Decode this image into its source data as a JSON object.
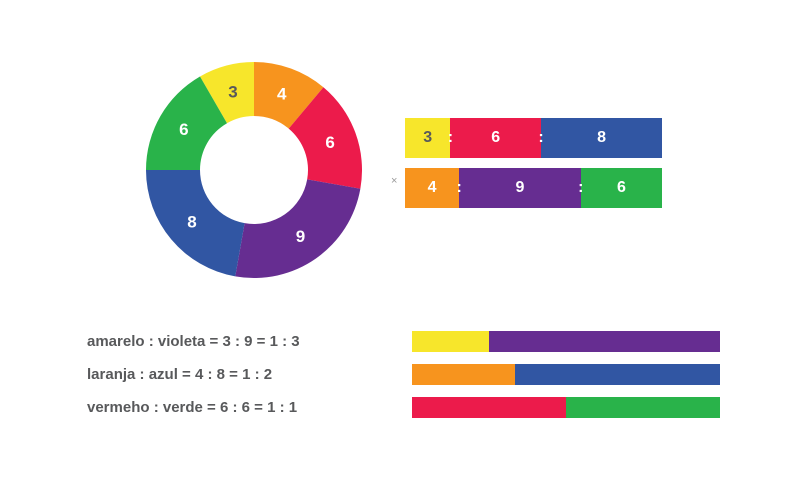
{
  "page": {
    "background": "#ffffff"
  },
  "palette": {
    "yellow": "#F7E62B",
    "orange": "#F7941E",
    "red": "#EC1B4B",
    "purple": "#662D91",
    "blue": "#3156A3",
    "green": "#29B34A",
    "text_dark": "#58595B",
    "label_light": "#FFFFFF"
  },
  "chart_data": [
    {
      "id": "donut",
      "type": "pie",
      "subtype": "donut",
      "direction": "clockwise",
      "start_angle_deg": -30,
      "total": 36,
      "segments": [
        {
          "label": "3",
          "value": 3,
          "color": "yellow",
          "label_style": "dark"
        },
        {
          "label": "4",
          "value": 4,
          "color": "orange",
          "label_style": "light"
        },
        {
          "label": "6",
          "value": 6,
          "color": "red",
          "label_style": "light"
        },
        {
          "label": "9",
          "value": 9,
          "color": "purple",
          "label_style": "light"
        },
        {
          "label": "8",
          "value": 8,
          "color": "blue",
          "label_style": "light"
        },
        {
          "label": "6",
          "value": 6,
          "color": "green",
          "label_style": "light"
        }
      ]
    },
    {
      "id": "ratio-strip-top",
      "type": "bar",
      "separator": ":",
      "segments": [
        {
          "label": "3",
          "value": 3,
          "color": "yellow",
          "label_style": "dark"
        },
        {
          "label": "6",
          "value": 6,
          "color": "red",
          "label_style": "light"
        },
        {
          "label": "8",
          "value": 8,
          "color": "blue",
          "label_style": "light"
        }
      ]
    },
    {
      "id": "ratio-strip-bottom",
      "type": "bar",
      "separator": ":",
      "segments": [
        {
          "label": "4",
          "value": 4,
          "color": "orange",
          "label_style": "light"
        },
        {
          "label": "9",
          "value": 9,
          "color": "purple",
          "label_style": "light"
        },
        {
          "label": "6",
          "value": 6,
          "color": "green",
          "label_style": "light"
        }
      ]
    },
    {
      "id": "ratio-bar-yellow-purple",
      "type": "bar",
      "segments": [
        {
          "value": 1,
          "color": "yellow"
        },
        {
          "value": 3,
          "color": "purple"
        }
      ]
    },
    {
      "id": "ratio-bar-orange-blue",
      "type": "bar",
      "segments": [
        {
          "value": 1,
          "color": "orange"
        },
        {
          "value": 2,
          "color": "blue"
        }
      ]
    },
    {
      "id": "ratio-bar-red-green",
      "type": "bar",
      "segments": [
        {
          "value": 1,
          "color": "red"
        },
        {
          "value": 1,
          "color": "green"
        }
      ]
    }
  ],
  "equations": [
    {
      "text": "amarelo : violeta = 3 : 9 = 1 : 3"
    },
    {
      "text": "laranja : azul = 4 : 8 = 1 : 2"
    },
    {
      "text": "vermeho : verde = 6 : 6 = 1 : 1"
    }
  ],
  "marks": {
    "multiply": "×"
  }
}
